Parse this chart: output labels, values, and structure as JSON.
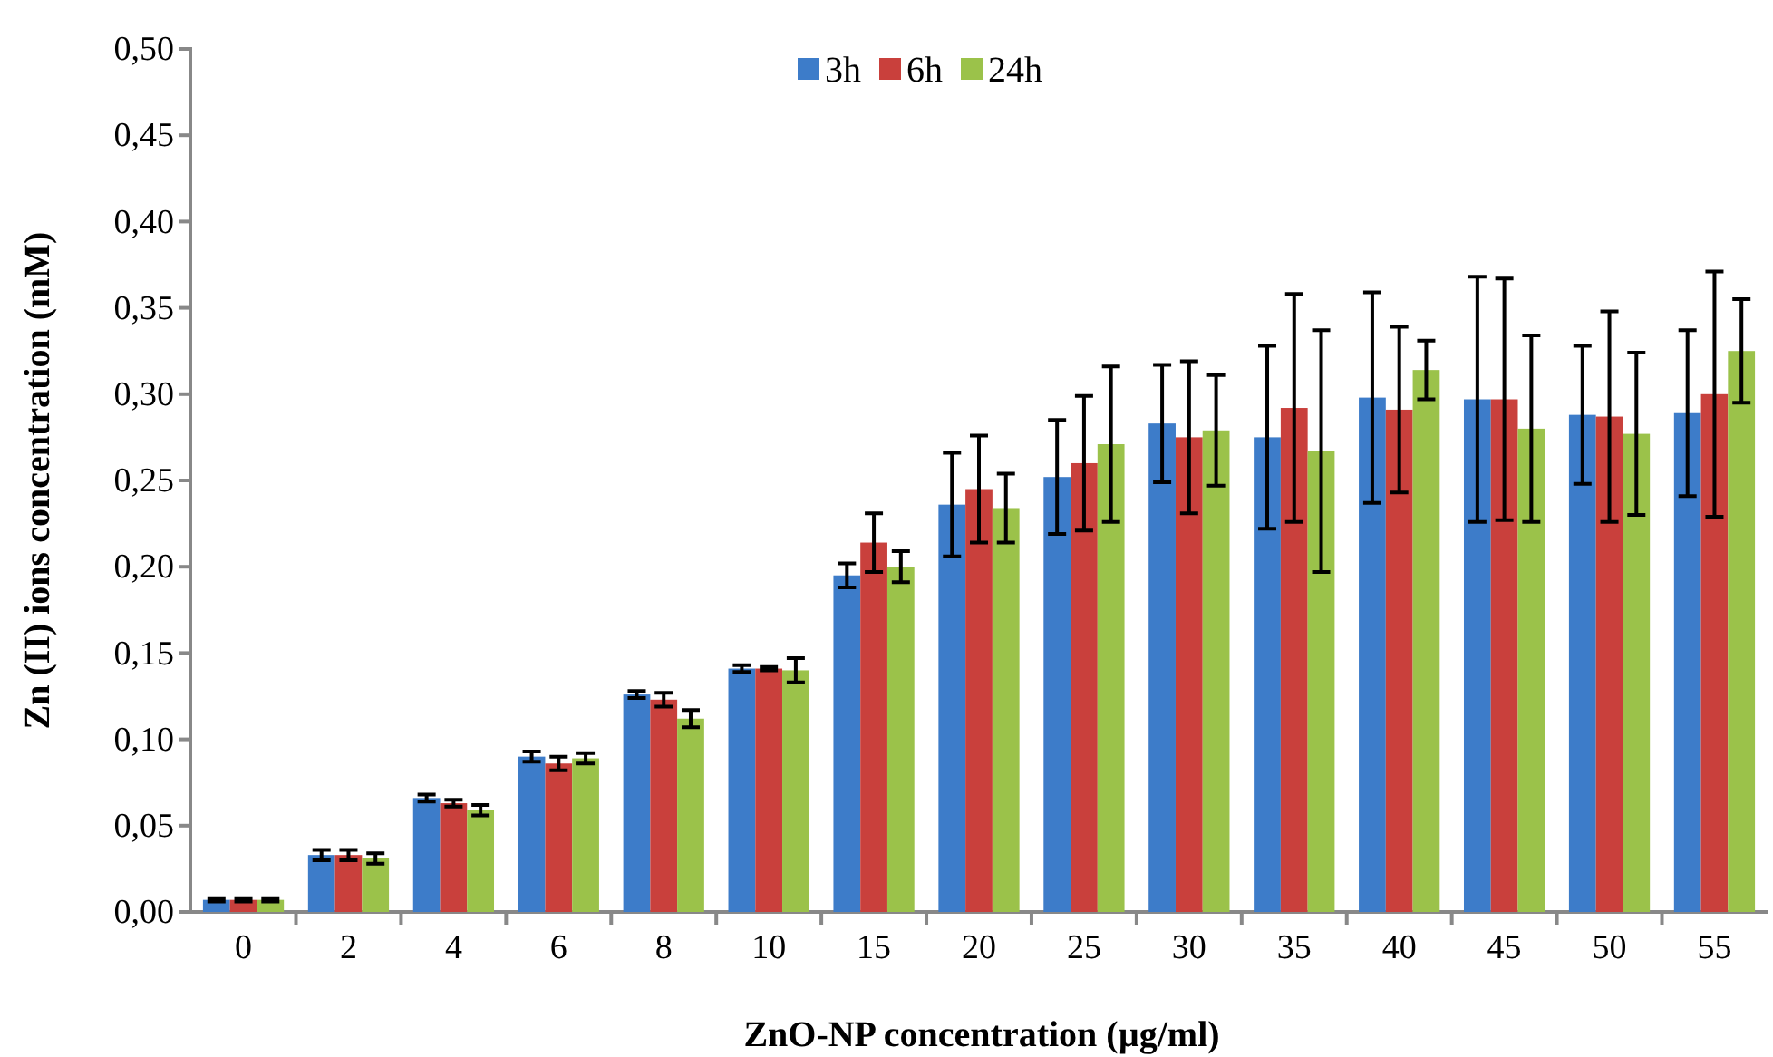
{
  "chart_data": {
    "type": "bar",
    "xlabel": "ZnO-NP concentration (µg/ml)",
    "ylabel": "Zn (II) ions concentration (mM)",
    "categories": [
      "0",
      "2",
      "4",
      "6",
      "8",
      "10",
      "15",
      "20",
      "25",
      "30",
      "35",
      "40",
      "45",
      "50",
      "55"
    ],
    "series": [
      {
        "name": "3h",
        "color": "#3d7cc9",
        "values": [
          0.007,
          0.033,
          0.066,
          0.09,
          0.126,
          0.141,
          0.195,
          0.236,
          0.252,
          0.283,
          0.275,
          0.298,
          0.297,
          0.288,
          0.289
        ],
        "errors": [
          0.001,
          0.003,
          0.002,
          0.003,
          0.002,
          0.002,
          0.007,
          0.03,
          0.033,
          0.034,
          0.053,
          0.061,
          0.071,
          0.04,
          0.048
        ]
      },
      {
        "name": "6h",
        "color": "#c9403c",
        "values": [
          0.007,
          0.033,
          0.063,
          0.086,
          0.123,
          0.141,
          0.214,
          0.245,
          0.26,
          0.275,
          0.292,
          0.291,
          0.297,
          0.287,
          0.3
        ],
        "errors": [
          0.001,
          0.003,
          0.002,
          0.004,
          0.004,
          0.001,
          0.017,
          0.031,
          0.039,
          0.044,
          0.066,
          0.048,
          0.07,
          0.061,
          0.071
        ]
      },
      {
        "name": "24h",
        "color": "#9bc24a",
        "values": [
          0.007,
          0.031,
          0.059,
          0.089,
          0.112,
          0.14,
          0.2,
          0.234,
          0.271,
          0.279,
          0.267,
          0.314,
          0.28,
          0.277,
          0.325
        ],
        "errors": [
          0.001,
          0.003,
          0.003,
          0.003,
          0.005,
          0.007,
          0.009,
          0.02,
          0.045,
          0.032,
          0.07,
          0.017,
          0.054,
          0.047,
          0.03
        ]
      }
    ],
    "ylim": [
      0,
      0.5
    ],
    "yticks": [
      {
        "value": 0,
        "label": "0,00"
      },
      {
        "value": 0.05,
        "label": "0,05"
      },
      {
        "value": 0.1,
        "label": "0,10"
      },
      {
        "value": 0.15,
        "label": "0,15"
      },
      {
        "value": 0.2,
        "label": "0,20"
      },
      {
        "value": 0.25,
        "label": "0,25"
      },
      {
        "value": 0.3,
        "label": "0,30"
      },
      {
        "value": 0.35,
        "label": "0,35"
      },
      {
        "value": 0.4,
        "label": "0,40"
      },
      {
        "value": 0.45,
        "label": "0,45"
      },
      {
        "value": 0.5,
        "label": "0,50"
      }
    ],
    "grid": false,
    "legend": "top"
  }
}
